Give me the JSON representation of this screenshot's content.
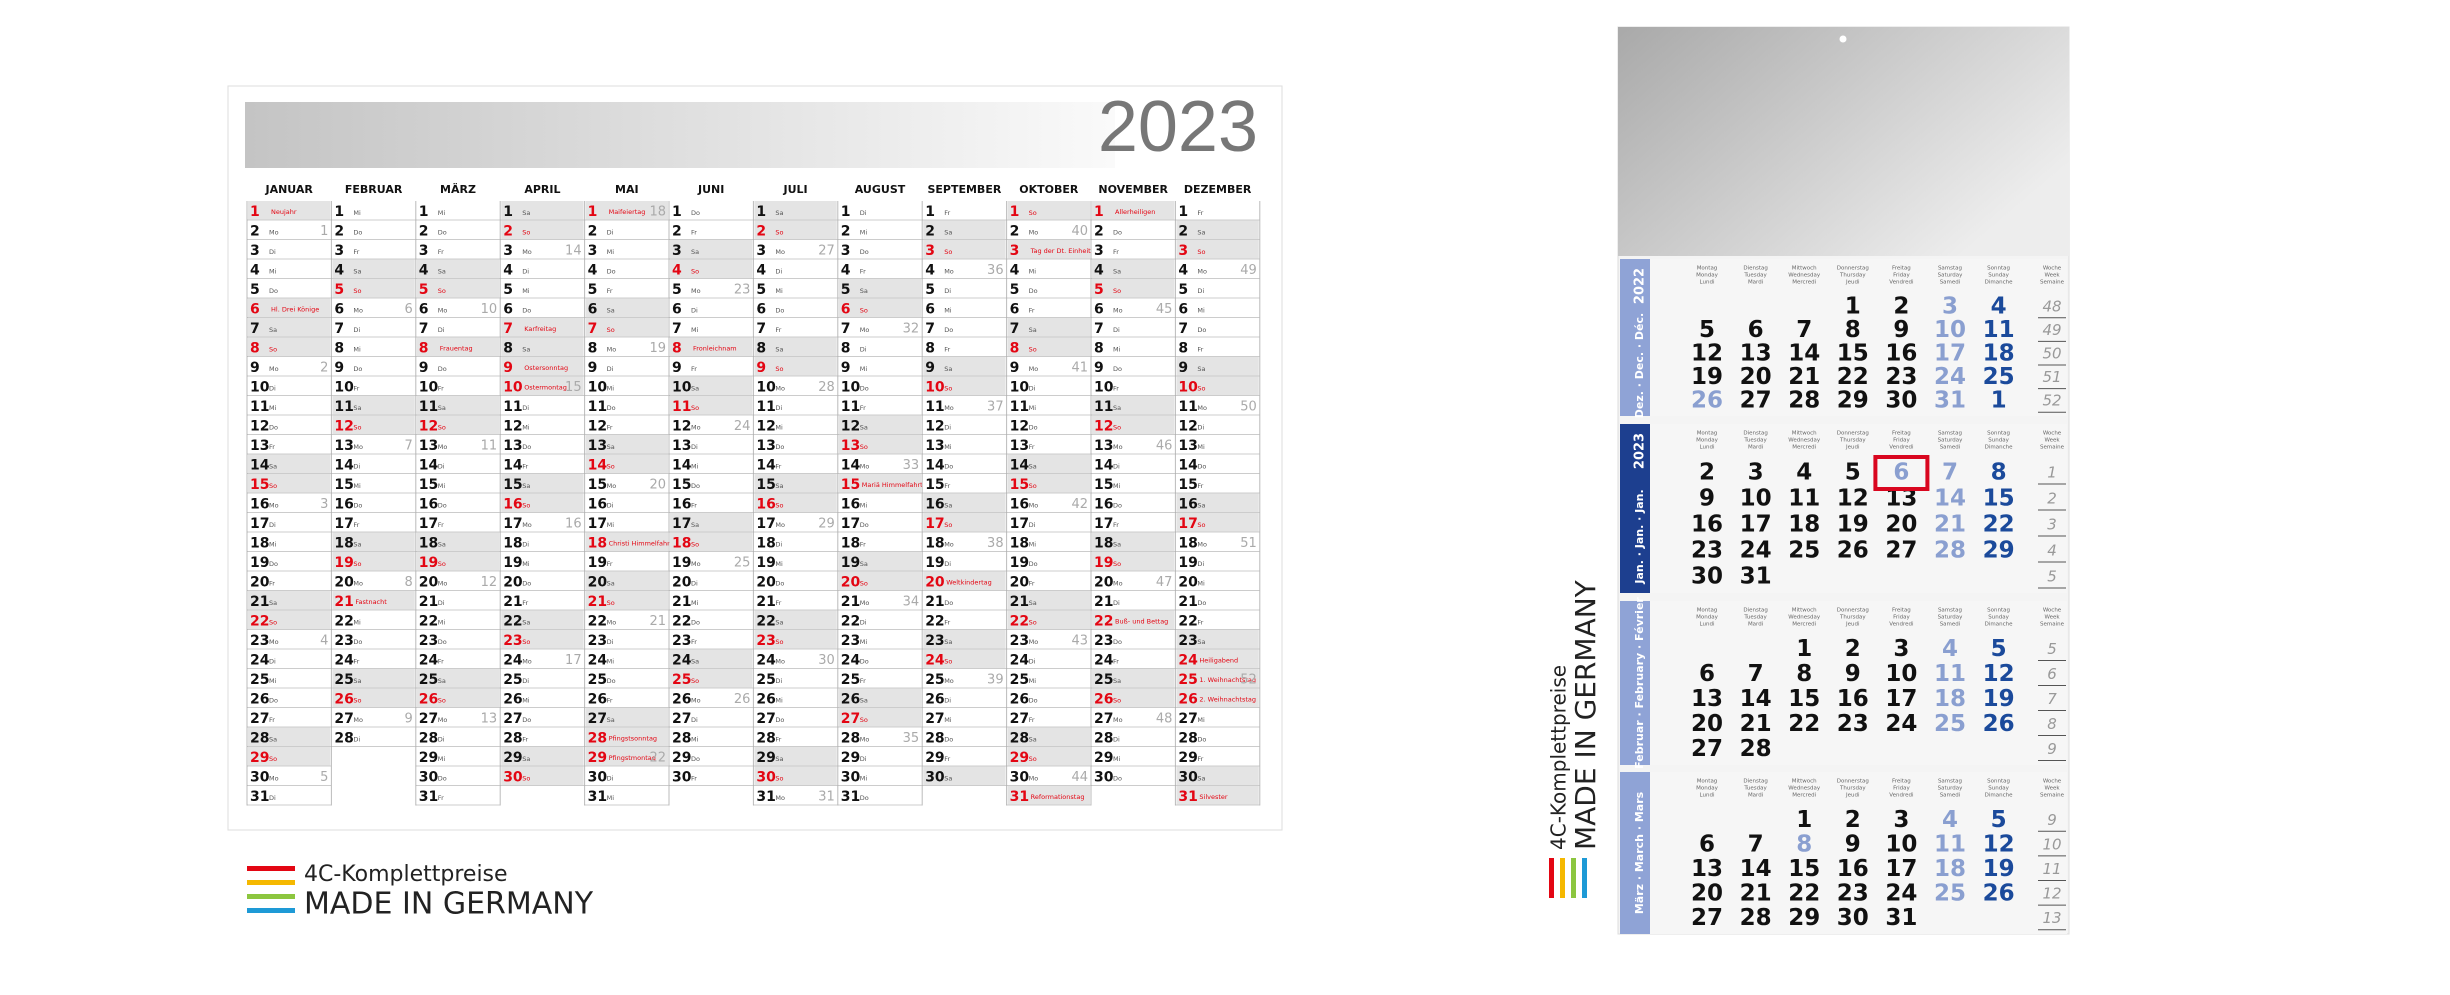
{
  "wall_planner": {
    "year": "2023",
    "month_names": [
      "JANUAR",
      "FEBRUAR",
      "MÄRZ",
      "APRIL",
      "MAI",
      "JUNI",
      "JULI",
      "AUGUST",
      "SEPTEMBER",
      "OKTOBER",
      "NOVEMBER",
      "DEZEMBER"
    ],
    "weekday_names": [
      "Mo",
      "Di",
      "Mi",
      "Do",
      "Fr",
      "Sa",
      "So"
    ],
    "day_numbers": [
      1,
      2,
      3,
      4,
      5,
      6,
      7,
      8,
      9,
      10,
      11,
      12,
      13,
      14,
      15,
      16,
      17,
      18,
      19,
      20,
      21,
      22,
      23,
      24,
      25,
      26,
      27,
      28,
      29,
      30,
      31
    ],
    "months": [
      {
        "first_weekday": 6,
        "length": 31,
        "week_numbers": [
          1,
          2,
          3,
          4,
          5
        ],
        "holidays": [
          {
            "day": 1,
            "label": "Neujahr"
          },
          {
            "day": 6,
            "label": "Hl. Drei Könige"
          }
        ]
      },
      {
        "first_weekday": 2,
        "length": 28,
        "week_numbers": [
          6,
          7,
          8,
          9
        ],
        "holidays": [
          {
            "day": 21,
            "label": "Fastnacht"
          }
        ]
      },
      {
        "first_weekday": 2,
        "length": 31,
        "week_numbers": [
          10,
          11,
          12,
          13
        ],
        "holidays": [
          {
            "day": 8,
            "label": "Frauentag"
          }
        ]
      },
      {
        "first_weekday": 5,
        "length": 30,
        "week_numbers": [
          14,
          15,
          16,
          17
        ],
        "holidays": [
          {
            "day": 7,
            "label": "Karfreitag"
          },
          {
            "day": 9,
            "label": "Ostersonntag"
          },
          {
            "day": 10,
            "label": "Ostermontag"
          }
        ]
      },
      {
        "first_weekday": 0,
        "length": 31,
        "week_numbers": [
          18,
          19,
          20,
          21,
          22
        ],
        "holidays": [
          {
            "day": 1,
            "label": "Maifeiertag"
          },
          {
            "day": 18,
            "label": "Christi Himmelfahrt"
          },
          {
            "day": 28,
            "label": "Pfingstsonntag"
          },
          {
            "day": 29,
            "label": "Pfingstmontag"
          }
        ]
      },
      {
        "first_weekday": 3,
        "length": 30,
        "week_numbers": [
          23,
          24,
          25,
          26
        ],
        "holidays": [
          {
            "day": 8,
            "label": "Fronleichnam"
          }
        ]
      },
      {
        "first_weekday": 5,
        "length": 31,
        "week_numbers": [
          27,
          28,
          29,
          30,
          31
        ],
        "holidays": []
      },
      {
        "first_weekday": 1,
        "length": 31,
        "week_numbers": [
          32,
          33,
          34,
          35
        ],
        "holidays": [
          {
            "day": 15,
            "label": "Mariä Himmelfahrt"
          }
        ]
      },
      {
        "first_weekday": 4,
        "length": 30,
        "week_numbers": [
          36,
          37,
          38,
          39
        ],
        "holidays": [
          {
            "day": 20,
            "label": "Weltkindertag"
          }
        ]
      },
      {
        "first_weekday": 6,
        "length": 31,
        "week_numbers": [
          40,
          41,
          42,
          43,
          44
        ],
        "holidays": [
          {
            "day": 3,
            "label": "Tag der Dt. Einheit"
          },
          {
            "day": 31,
            "label": "Reformationstag"
          }
        ]
      },
      {
        "first_weekday": 2,
        "length": 30,
        "week_numbers": [
          45,
          46,
          47,
          48
        ],
        "holidays": [
          {
            "day": 1,
            "label": "Allerheiligen"
          },
          {
            "day": 22,
            "label": "Buß- und Bettag"
          }
        ]
      },
      {
        "first_weekday": 4,
        "length": 31,
        "week_numbers": [
          49,
          50,
          51,
          52
        ],
        "holidays": [
          {
            "day": 24,
            "label": "Heiligabend"
          },
          {
            "day": 25,
            "label": "1. Weihnachtstag"
          },
          {
            "day": 26,
            "label": "2. Weihnachtstag"
          },
          {
            "day": 31,
            "label": "Silvester"
          }
        ]
      }
    ]
  },
  "logo_left": {
    "line1": "4C-Komplettpreise",
    "line2": "MADE IN GERMANY"
  },
  "logo_right": {
    "line1": "4C-Komplettpreise",
    "line2": "MADE IN GERMANY"
  },
  "three_month": {
    "weekday_headers": [
      [
        "Montag",
        "Monday",
        "Lundi"
      ],
      [
        "Dienstag",
        "Tuesday",
        "Mardi"
      ],
      [
        "Mittwoch",
        "Wednesday",
        "Mercredi"
      ],
      [
        "Donnerstag",
        "Thursday",
        "Jeudi"
      ],
      [
        "Freitag",
        "Friday",
        "Vendredi"
      ],
      [
        "Samstag",
        "Saturday",
        "Samedi"
      ],
      [
        "Sonntag",
        "Sunday",
        "Dimanche"
      ],
      [
        "Woche",
        "Week",
        "Semaine"
      ]
    ],
    "blocks": [
      {
        "year": "2022",
        "label": "Dez. · Dec. · Déc.",
        "color": "#8fa3d6",
        "rows": [
          [
            null,
            null,
            null,
            1,
            2,
            3,
            4
          ],
          [
            5,
            6,
            7,
            8,
            9,
            10,
            11
          ],
          [
            12,
            13,
            14,
            15,
            16,
            17,
            18
          ],
          [
            19,
            20,
            21,
            22,
            23,
            24,
            25
          ],
          [
            26,
            27,
            28,
            29,
            30,
            31,
            1
          ]
        ],
        "weeks": [
          48,
          49,
          50,
          51,
          52
        ],
        "holidays": [
          [
            4,
            0
          ]
        ],
        "highlight": null
      },
      {
        "year": "2023",
        "label": "Jan. · Jan. · Jan.",
        "color": "#1d3f8f",
        "rows": [
          [
            2,
            3,
            4,
            5,
            6,
            7,
            8
          ],
          [
            9,
            10,
            11,
            12,
            13,
            14,
            15
          ],
          [
            16,
            17,
            18,
            19,
            20,
            21,
            22
          ],
          [
            23,
            24,
            25,
            26,
            27,
            28,
            29
          ],
          [
            30,
            31,
            null,
            null,
            null,
            null,
            null
          ]
        ],
        "weeks": [
          1,
          2,
          3,
          4,
          5
        ],
        "holidays": [
          [
            0,
            4
          ]
        ],
        "highlight": [
          0,
          4
        ]
      },
      {
        "label": "Februar · February · Février",
        "color": "#8fa3d6",
        "rows": [
          [
            null,
            null,
            1,
            2,
            3,
            4,
            5
          ],
          [
            6,
            7,
            8,
            9,
            10,
            11,
            12
          ],
          [
            13,
            14,
            15,
            16,
            17,
            18,
            19
          ],
          [
            20,
            21,
            22,
            23,
            24,
            25,
            26
          ],
          [
            27,
            28,
            null,
            null,
            null,
            null,
            null
          ]
        ],
        "weeks": [
          5,
          6,
          7,
          8,
          9
        ],
        "holidays": [],
        "highlight": null
      },
      {
        "label": "März · March · Mars",
        "color": "#8fa3d6",
        "rows": [
          [
            null,
            null,
            1,
            2,
            3,
            4,
            5
          ],
          [
            6,
            7,
            8,
            9,
            10,
            11,
            12
          ],
          [
            13,
            14,
            15,
            16,
            17,
            18,
            19
          ],
          [
            20,
            21,
            22,
            23,
            24,
            25,
            26
          ],
          [
            27,
            28,
            29,
            30,
            31,
            null,
            null
          ]
        ],
        "weeks": [
          9,
          10,
          11,
          12,
          13
        ],
        "holidays": [
          [
            1,
            2
          ]
        ],
        "highlight": null
      }
    ]
  }
}
